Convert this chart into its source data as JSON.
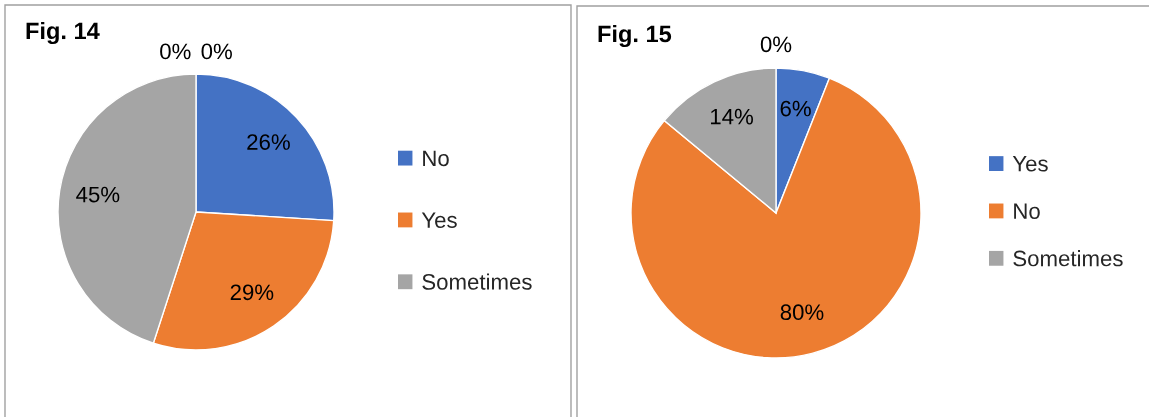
{
  "chart_data": [
    {
      "type": "pie",
      "title": "Fig. 14",
      "categories": [
        "No",
        "Yes",
        "Sometimes",
        null,
        null
      ],
      "values": [
        26,
        29,
        45,
        0,
        0
      ],
      "colors": [
        "#4472c4",
        "#ed7d31",
        "#a5a5a5",
        null,
        null
      ],
      "value_labels": [
        "26%",
        "29%",
        "45%",
        "0%",
        "0%"
      ],
      "legend": "right"
    },
    {
      "type": "pie",
      "title": "Fig. 15",
      "categories": [
        "Yes",
        "No",
        "Sometimes",
        null
      ],
      "values": [
        6,
        80,
        14,
        0
      ],
      "colors": [
        "#4472c4",
        "#ed7d31",
        "#a5a5a5",
        null
      ],
      "value_labels": [
        "6%",
        "80%",
        "14%",
        "0%"
      ],
      "legend": "right"
    }
  ]
}
